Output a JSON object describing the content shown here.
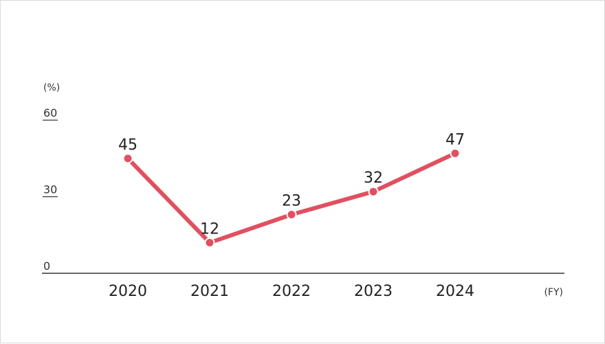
{
  "chart_data": {
    "type": "line",
    "categories": [
      "2020",
      "2021",
      "2022",
      "2023",
      "2024"
    ],
    "series": [
      {
        "values": [
          45,
          12,
          23,
          32,
          47
        ]
      }
    ],
    "data_labels": [
      "45",
      "12",
      "23",
      "32",
      "47"
    ],
    "ylabel": "(%)",
    "xlabel": "(FY)",
    "ylim": [
      0,
      60
    ],
    "yticks": [
      "0",
      "30",
      "60"
    ],
    "grid": false,
    "line_color": "#e05060"
  }
}
